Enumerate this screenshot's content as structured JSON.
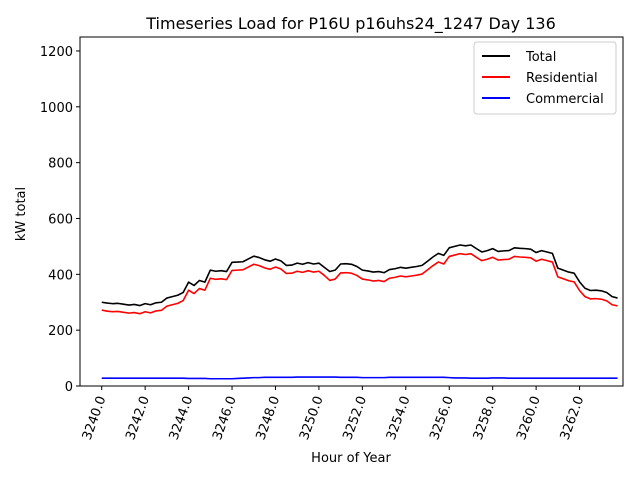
{
  "chart_data": {
    "type": "line",
    "title": "Timeseries Load for P16U p16uhs24_1247  Day 136",
    "xlabel": "Hour of Year",
    "ylabel": "kW total",
    "xlim": [
      3239,
      3264
    ],
    "ylim": [
      0,
      1250
    ],
    "xticks": [
      3240,
      3242,
      3244,
      3246,
      3248,
      3250,
      3252,
      3254,
      3256,
      3258,
      3260,
      3262
    ],
    "xtick_labels": [
      "3240.0",
      "3242.0",
      "3244.0",
      "3246.0",
      "3248.0",
      "3250.0",
      "3252.0",
      "3254.0",
      "3256.0",
      "3258.0",
      "3260.0",
      "3262.0"
    ],
    "yticks": [
      0,
      200,
      400,
      600,
      800,
      1000,
      1200
    ],
    "ytick_labels": [
      "0",
      "200",
      "400",
      "600",
      "800",
      "1000",
      "1200"
    ],
    "legend_position": "top-right",
    "x_start": 3240,
    "x_step": 0.25,
    "series": [
      {
        "name": "Total",
        "color": "#000000",
        "values": [
          300,
          297,
          295,
          296,
          293,
          290,
          292,
          288,
          295,
          291,
          298,
          300,
          315,
          320,
          325,
          335,
          372,
          360,
          378,
          372,
          415,
          411,
          413,
          410,
          443,
          444,
          445,
          455,
          465,
          460,
          452,
          447,
          455,
          448,
          432,
          433,
          440,
          436,
          442,
          437,
          440,
          425,
          410,
          415,
          437,
          438,
          436,
          428,
          415,
          412,
          408,
          410,
          406,
          417,
          420,
          425,
          422,
          425,
          428,
          432,
          447,
          462,
          475,
          468,
          495,
          500,
          505,
          502,
          505,
          492,
          480,
          485,
          492,
          482,
          484,
          485,
          495,
          493,
          492,
          490,
          478,
          485,
          480,
          475,
          422,
          415,
          408,
          404,
          373,
          350,
          342,
          343,
          341,
          335,
          320,
          315
        ]
      },
      {
        "name": "Residential",
        "color": "#ff0000",
        "values": [
          272,
          268,
          266,
          267,
          264,
          261,
          263,
          259,
          266,
          262,
          269,
          271,
          286,
          291,
          296,
          306,
          343,
          331,
          349,
          343,
          386,
          382,
          384,
          381,
          414,
          415,
          416,
          426,
          436,
          431,
          423,
          418,
          426,
          419,
          403,
          404,
          411,
          407,
          413,
          408,
          411,
          396,
          378,
          383,
          405,
          406,
          404,
          396,
          383,
          380,
          376,
          378,
          374,
          386,
          389,
          394,
          391,
          394,
          397,
          401,
          416,
          431,
          444,
          437,
          464,
          469,
          474,
          471,
          474,
          461,
          449,
          454,
          461,
          451,
          453,
          454,
          464,
          462,
          461,
          459,
          447,
          454,
          449,
          444,
          391,
          384,
          377,
          373,
          342,
          320,
          312,
          313,
          311,
          305,
          291,
          287
        ]
      },
      {
        "name": "Commercial",
        "color": "#0000ff",
        "values": [
          28,
          28,
          28,
          28,
          28,
          28,
          28,
          28,
          28,
          28,
          28,
          28,
          28,
          28,
          28,
          28,
          27,
          27,
          27,
          27,
          26,
          26,
          26,
          26,
          26,
          27,
          28,
          29,
          30,
          30,
          31,
          31,
          31,
          31,
          31,
          31,
          32,
          32,
          32,
          32,
          32,
          32,
          32,
          32,
          31,
          31,
          31,
          31,
          30,
          30,
          30,
          30,
          30,
          31,
          31,
          31,
          31,
          31,
          31,
          31,
          31,
          31,
          31,
          31,
          30,
          29,
          29,
          29,
          28,
          28,
          28,
          28,
          29,
          29,
          29,
          28,
          28,
          28,
          28,
          28,
          28,
          28,
          28,
          28,
          28,
          28,
          28,
          28,
          28,
          28,
          28,
          28,
          28,
          28,
          28,
          28
        ]
      }
    ]
  }
}
